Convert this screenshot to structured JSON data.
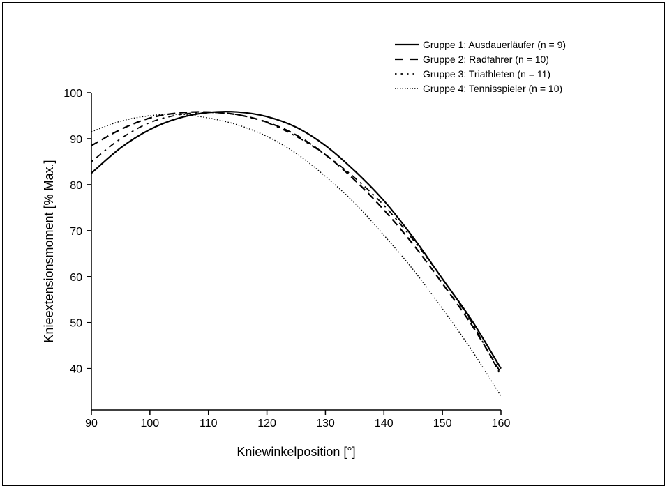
{
  "chart_data": {
    "type": "line",
    "title": "",
    "xlabel": "Kniewinkelposition [°]",
    "ylabel": "Knieextensionsmoment [% Max.]",
    "xlim": [
      90,
      160
    ],
    "ylim": [
      31,
      100
    ],
    "xticks": [
      90,
      100,
      110,
      120,
      130,
      140,
      150,
      160
    ],
    "yticks": [
      40,
      50,
      60,
      70,
      80,
      90,
      100
    ],
    "grid": false,
    "legend_position": "top-right",
    "series": [
      {
        "name": "Gruppe 1: Ausdauerläufer (n = 9)",
        "dash": "solid",
        "x": [
          90,
          95,
          100,
          105,
          110,
          115,
          120,
          125,
          130,
          135,
          140,
          145,
          150,
          155,
          160
        ],
        "y": [
          82.5,
          88,
          92,
          94.5,
          95.7,
          95.8,
          94.8,
          92.5,
          88.5,
          83,
          76.5,
          68.5,
          59.5,
          50.5,
          40
        ]
      },
      {
        "name": "Gruppe 2: Radfahrer (n = 10)",
        "dash": "dashed",
        "x": [
          90,
          95,
          100,
          105,
          110,
          115,
          120,
          125,
          130,
          135,
          140,
          145,
          150,
          155,
          160
        ],
        "y": [
          88.5,
          92,
          94.5,
          95.6,
          95.8,
          95.2,
          93.6,
          90.8,
          86.5,
          81,
          74.5,
          67,
          58.5,
          49.5,
          39
        ]
      },
      {
        "name": "Gruppe 3: Triathleten (n = 11)",
        "dash": "dash-dot",
        "x": [
          90,
          95,
          100,
          105,
          110,
          115,
          120,
          125,
          130,
          135,
          140,
          145,
          150,
          155,
          160
        ],
        "y": [
          85,
          90,
          93.5,
          95.2,
          95.7,
          95.2,
          93.5,
          90.5,
          86.5,
          81.5,
          75.5,
          68,
          59.5,
          50,
          38.5
        ]
      },
      {
        "name": "Gruppe 4: Tennisspieler (n = 10)",
        "dash": "dotted",
        "x": [
          90,
          95,
          100,
          105,
          110,
          115,
          120,
          125,
          130,
          135,
          140,
          145,
          150,
          155,
          160
        ],
        "y": [
          91.5,
          93.8,
          95,
          95.3,
          94.5,
          93,
          90.5,
          86.8,
          81.8,
          76,
          69,
          61.5,
          53,
          44,
          34
        ]
      }
    ]
  }
}
